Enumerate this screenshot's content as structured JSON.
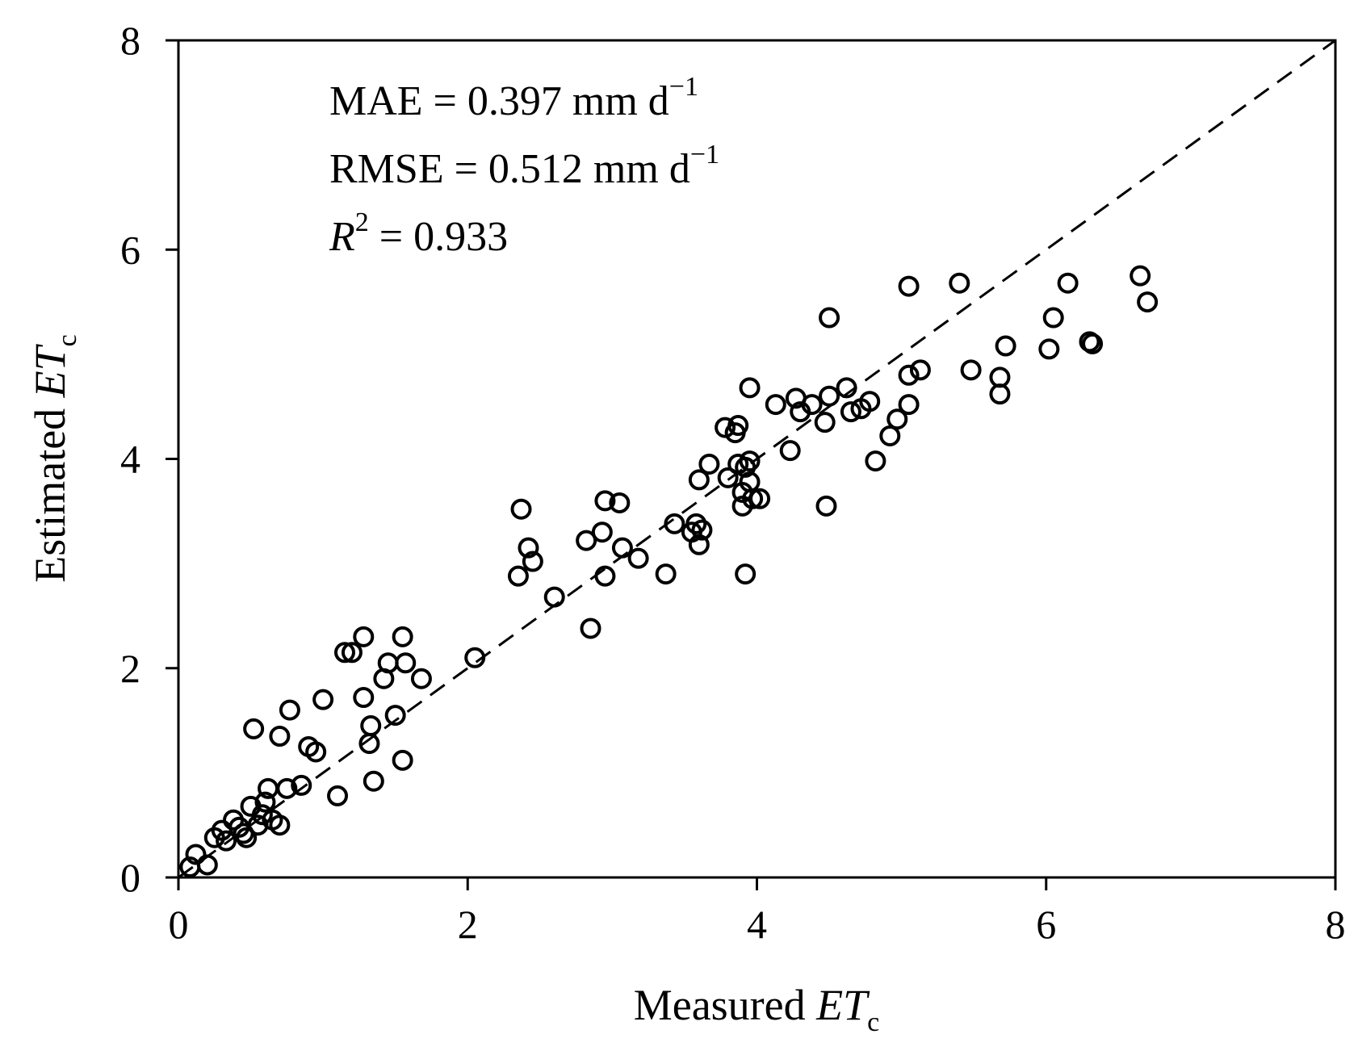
{
  "chart_data": {
    "type": "scatter",
    "title": "",
    "xlabel": {
      "main": "Measured ",
      "italic": "ET",
      "subscript": "c"
    },
    "ylabel": {
      "main": "Estimated ",
      "italic": "ET",
      "subscript": "c"
    },
    "xlim": [
      0,
      8
    ],
    "ylim": [
      0,
      8
    ],
    "xticks": [
      0,
      2,
      4,
      6,
      8
    ],
    "yticks": [
      0,
      2,
      4,
      6,
      8
    ],
    "xtick_labels": [
      "0",
      "2",
      "4",
      "6",
      "8"
    ],
    "ytick_labels": [
      "0",
      "2",
      "4",
      "6",
      "8"
    ],
    "grid": false,
    "reference_line": {
      "type": "1:1",
      "style": "dashed",
      "from": [
        0,
        0
      ],
      "to": [
        8,
        8
      ]
    },
    "annotations": {
      "mae": {
        "label": "MAE = 0.397 mm d",
        "sup": "−1"
      },
      "rmse": {
        "label": "RMSE = 0.512 mm d",
        "sup": "−1"
      },
      "r2": {
        "italic": "R",
        "sup": "2",
        "label": " = 0.933"
      }
    },
    "series": [
      {
        "name": "observations",
        "marker": "open-circle",
        "points": [
          [
            0.08,
            0.1
          ],
          [
            0.12,
            0.22
          ],
          [
            0.2,
            0.12
          ],
          [
            0.25,
            0.38
          ],
          [
            0.3,
            0.45
          ],
          [
            0.33,
            0.35
          ],
          [
            0.38,
            0.55
          ],
          [
            0.42,
            0.48
          ],
          [
            0.45,
            0.42
          ],
          [
            0.47,
            0.38
          ],
          [
            0.5,
            0.68
          ],
          [
            0.55,
            0.5
          ],
          [
            0.58,
            0.6
          ],
          [
            0.6,
            0.72
          ],
          [
            0.62,
            0.85
          ],
          [
            0.65,
            0.55
          ],
          [
            0.7,
            0.5
          ],
          [
            0.75,
            0.85
          ],
          [
            0.85,
            0.88
          ],
          [
            0.9,
            1.25
          ],
          [
            0.95,
            1.2
          ],
          [
            0.52,
            1.42
          ],
          [
            0.7,
            1.35
          ],
          [
            0.77,
            1.6
          ],
          [
            1.0,
            1.7
          ],
          [
            1.1,
            0.78
          ],
          [
            1.15,
            2.15
          ],
          [
            1.2,
            2.15
          ],
          [
            1.28,
            2.3
          ],
          [
            1.28,
            1.72
          ],
          [
            1.32,
            1.28
          ],
          [
            1.33,
            1.45
          ],
          [
            1.35,
            0.92
          ],
          [
            1.42,
            1.9
          ],
          [
            1.45,
            2.05
          ],
          [
            1.5,
            1.55
          ],
          [
            1.55,
            1.12
          ],
          [
            1.55,
            2.3
          ],
          [
            1.57,
            2.05
          ],
          [
            1.68,
            1.9
          ],
          [
            2.05,
            2.1
          ],
          [
            2.35,
            2.88
          ],
          [
            2.37,
            3.52
          ],
          [
            2.42,
            3.15
          ],
          [
            2.45,
            3.02
          ],
          [
            2.6,
            2.68
          ],
          [
            2.82,
            3.22
          ],
          [
            2.85,
            2.38
          ],
          [
            2.93,
            3.3
          ],
          [
            2.95,
            3.6
          ],
          [
            2.95,
            2.88
          ],
          [
            3.05,
            3.58
          ],
          [
            3.07,
            3.15
          ],
          [
            3.18,
            3.05
          ],
          [
            3.37,
            2.9
          ],
          [
            3.43,
            3.38
          ],
          [
            3.55,
            3.3
          ],
          [
            3.58,
            3.38
          ],
          [
            3.6,
            3.18
          ],
          [
            3.62,
            3.32
          ],
          [
            3.6,
            3.8
          ],
          [
            3.67,
            3.95
          ],
          [
            3.78,
            4.3
          ],
          [
            3.8,
            3.82
          ],
          [
            3.85,
            4.25
          ],
          [
            3.87,
            4.32
          ],
          [
            3.87,
            3.95
          ],
          [
            3.9,
            3.55
          ],
          [
            3.9,
            3.68
          ],
          [
            3.92,
            3.92
          ],
          [
            3.92,
            2.9
          ],
          [
            3.95,
            3.98
          ],
          [
            3.95,
            3.78
          ],
          [
            3.97,
            3.62
          ],
          [
            3.95,
            4.68
          ],
          [
            4.02,
            3.62
          ],
          [
            4.13,
            4.52
          ],
          [
            4.23,
            4.08
          ],
          [
            4.27,
            4.58
          ],
          [
            4.3,
            4.45
          ],
          [
            4.38,
            4.52
          ],
          [
            4.47,
            4.35
          ],
          [
            4.48,
            3.55
          ],
          [
            4.5,
            4.6
          ],
          [
            4.5,
            5.35
          ],
          [
            4.62,
            4.68
          ],
          [
            4.65,
            4.45
          ],
          [
            4.72,
            4.48
          ],
          [
            4.78,
            4.55
          ],
          [
            4.82,
            3.98
          ],
          [
            4.92,
            4.22
          ],
          [
            4.97,
            4.38
          ],
          [
            5.05,
            4.52
          ],
          [
            5.05,
            4.8
          ],
          [
            5.05,
            5.65
          ],
          [
            5.13,
            4.85
          ],
          [
            5.4,
            5.68
          ],
          [
            5.48,
            4.85
          ],
          [
            5.68,
            4.78
          ],
          [
            5.68,
            4.62
          ],
          [
            5.72,
            5.08
          ],
          [
            6.02,
            5.05
          ],
          [
            6.05,
            5.35
          ],
          [
            6.15,
            5.68
          ],
          [
            6.3,
            5.12
          ],
          [
            6.32,
            5.1
          ],
          [
            6.65,
            5.75
          ],
          [
            6.7,
            5.5
          ]
        ]
      }
    ]
  }
}
